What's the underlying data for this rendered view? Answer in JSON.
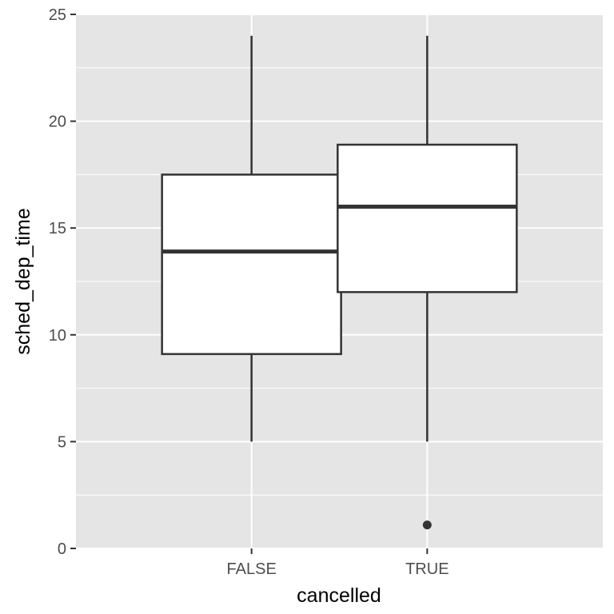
{
  "chart_data": {
    "type": "boxplot",
    "xlabel": "cancelled",
    "ylabel": "sched_dep_time",
    "ylim": [
      0,
      25
    ],
    "y_ticks": [
      0,
      5,
      10,
      15,
      20,
      25
    ],
    "y_tick_labels": [
      "0",
      "5",
      "10",
      "15",
      "20",
      "25"
    ],
    "categories": [
      "FALSE",
      "TRUE"
    ],
    "boxes": [
      {
        "category": "FALSE",
        "whisker_low": 5,
        "q1": 9.1,
        "median": 13.9,
        "q3": 17.5,
        "whisker_high": 24,
        "outliers": []
      },
      {
        "category": "TRUE",
        "whisker_low": 5,
        "q1": 12,
        "median": 16,
        "q3": 18.9,
        "whisker_high": 24,
        "outliers": [
          1.1
        ]
      }
    ],
    "grid": true,
    "legend": "none",
    "colors": {
      "panel_background": "#e5e5e5",
      "grid": "#ffffff",
      "box_fill": "#ffffff",
      "box_outline": "#333333",
      "outlier": "#333333",
      "tick_text": "#4d4d4d",
      "axis_title": "#000000"
    }
  }
}
